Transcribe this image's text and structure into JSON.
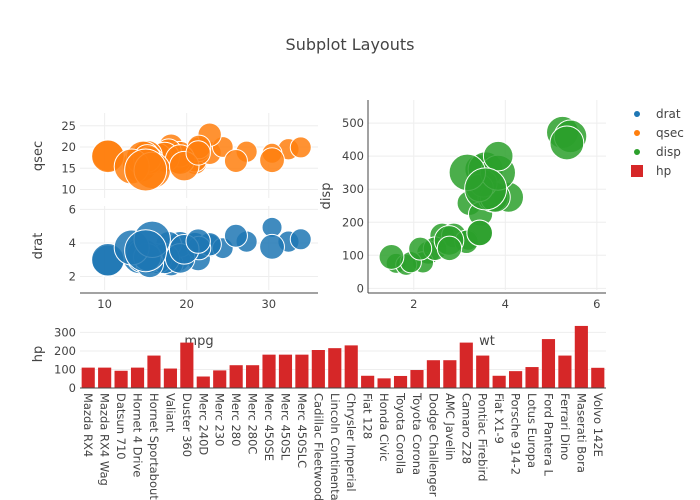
{
  "chart_data": {
    "title": "Subplot Layouts",
    "legend": {
      "placement": "top-right",
      "entries": [
        {
          "name": "drat",
          "color": "#1f77b4",
          "symbol": "dot"
        },
        {
          "name": "qsec",
          "color": "#ff7f0e",
          "symbol": "dot"
        },
        {
          "name": "disp",
          "color": "#2ca02c",
          "symbol": "dot"
        },
        {
          "name": "hp",
          "color": "#d62728",
          "symbol": "square"
        }
      ]
    },
    "subplots": [
      {
        "id": "qsec-vs-mpg",
        "type": "scatter",
        "series": "qsec",
        "ylabel": "qsec",
        "xlabel": "mpg",
        "xlim": [
          7,
          36
        ],
        "ylim": [
          8,
          28
        ],
        "yticks": [
          10,
          15,
          20,
          25
        ],
        "xticks": [
          10,
          20,
          30
        ],
        "x": [
          21,
          21,
          22.8,
          21.4,
          18.7,
          18.1,
          14.3,
          24.4,
          22.8,
          19.2,
          17.8,
          16.4,
          17.3,
          15.2,
          10.4,
          10.4,
          14.7,
          32.4,
          30.4,
          33.9,
          21.5,
          15.5,
          15.2,
          13.3,
          19.2,
          27.3,
          26,
          30.4,
          15.8,
          19.7,
          15,
          21.4
        ],
        "y": [
          16.46,
          17.02,
          18.61,
          19.44,
          17.02,
          20.22,
          15.84,
          20,
          22.9,
          18.3,
          18.9,
          17.4,
          17.6,
          18,
          17.98,
          17.82,
          17.42,
          19.47,
          18.52,
          19.9,
          20.01,
          16.87,
          17.3,
          15.41,
          17.05,
          18.9,
          16.7,
          16.9,
          14.5,
          15.5,
          14.6,
          18.6
        ]
      },
      {
        "id": "drat-vs-mpg",
        "type": "scatter",
        "series": "drat",
        "ylabel": "drat",
        "xlabel": "mpg",
        "xlim": [
          7,
          36
        ],
        "ylim": [
          1.2,
          6.2
        ],
        "yticks": [
          2,
          4,
          6
        ],
        "xticks": [
          10,
          20,
          30
        ],
        "x": [
          21,
          21,
          22.8,
          21.4,
          18.7,
          18.1,
          14.3,
          24.4,
          22.8,
          19.2,
          17.8,
          16.4,
          17.3,
          15.2,
          10.4,
          10.4,
          14.7,
          32.4,
          30.4,
          33.9,
          21.5,
          15.5,
          15.2,
          13.3,
          19.2,
          27.3,
          26,
          30.4,
          15.8,
          19.7,
          15,
          21.4
        ],
        "y": [
          3.9,
          3.9,
          3.85,
          3.08,
          3.15,
          2.76,
          3.21,
          3.69,
          3.92,
          3.92,
          3.92,
          3.07,
          3.07,
          3.07,
          2.93,
          3,
          3.23,
          4.08,
          4.93,
          4.22,
          3.7,
          2.76,
          3.15,
          3.73,
          3.08,
          4.08,
          4.43,
          3.77,
          4.22,
          3.62,
          3.54,
          4.11
        ]
      },
      {
        "id": "disp-vs-wt",
        "type": "scatter",
        "series": "disp",
        "ylabel": "disp",
        "xlabel": "wt",
        "xlim": [
          1,
          6.2
        ],
        "ylim": [
          -5,
          570
        ],
        "yticks": [
          0,
          100,
          200,
          300,
          400,
          500
        ],
        "xticks": [
          2,
          4,
          6
        ],
        "x": [
          2.62,
          2.875,
          2.32,
          3.215,
          3.44,
          3.46,
          3.57,
          3.19,
          3.15,
          3.44,
          3.44,
          4.07,
          3.73,
          3.78,
          5.25,
          5.424,
          5.345,
          2.2,
          1.615,
          1.835,
          2.465,
          3.52,
          3.435,
          3.84,
          3.845,
          1.935,
          2.14,
          1.513,
          3.17,
          2.77,
          3.57,
          2.78
        ],
        "y": [
          160,
          160,
          108,
          258,
          360,
          225,
          360,
          146.7,
          140.8,
          167.6,
          167.6,
          275.8,
          275.8,
          275.8,
          472,
          460,
          440,
          78.7,
          75.7,
          71.1,
          120.1,
          318,
          304,
          350,
          400,
          79,
          120.3,
          95.1,
          351,
          145,
          301,
          121
        ]
      },
      {
        "id": "hp-by-model",
        "type": "bar",
        "series": "hp",
        "ylabel": "hp",
        "ylim": [
          0,
          340
        ],
        "yticks": [
          0,
          100,
          200,
          300
        ],
        "categories": [
          "Mazda RX4",
          "Mazda RX4 Wag",
          "Datsun 710",
          "Hornet 4 Drive",
          "Hornet Sportabout",
          "Valiant",
          "Duster 360",
          "Merc 240D",
          "Merc 230",
          "Merc 280",
          "Merc 280C",
          "Merc 450SE",
          "Merc 450SL",
          "Merc 450SLC",
          "Cadillac Fleetwood",
          "Lincoln Continental",
          "Chrysler Imperial",
          "Fiat 128",
          "Honda Civic",
          "Toyota Corolla",
          "Toyota Corona",
          "Dodge Challenger",
          "AMC Javelin",
          "Camaro Z28",
          "Pontiac Firebird",
          "Fiat X1-9",
          "Porsche 914-2",
          "Lotus Europa",
          "Ford Pantera L",
          "Ferrari Dino",
          "Maserati Bora",
          "Volvo 142E"
        ],
        "values": [
          110,
          110,
          93,
          110,
          175,
          105,
          245,
          62,
          95,
          123,
          123,
          180,
          180,
          180,
          205,
          215,
          230,
          66,
          52,
          65,
          97,
          150,
          150,
          245,
          175,
          66,
          91,
          113,
          264,
          175,
          335,
          109
        ]
      }
    ]
  }
}
